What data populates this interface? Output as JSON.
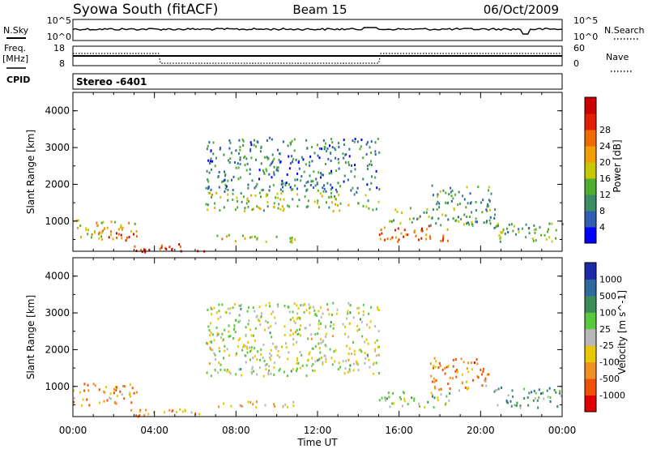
{
  "header": {
    "title": "Syowa South (fitACF)",
    "beam": "Beam 15",
    "date": "06/Oct/2009"
  },
  "noise_panel": {
    "left_label": "N.Sky",
    "right_label": "N.Search",
    "left_ticks": [
      "10^5",
      "10^0"
    ],
    "right_ticks": [
      "10^5",
      "10^0"
    ]
  },
  "freq_panel": {
    "label_line1": "Freq.",
    "label_line2": "[MHz]",
    "right_label": "Nave",
    "left_ticks": [
      "18",
      "8"
    ],
    "right_ticks": [
      "60",
      "0"
    ]
  },
  "cpid": {
    "label": "CPID",
    "value": "Stereo -6401"
  },
  "colors": {
    "power": [
      "#0000ff",
      "#2e5fb0",
      "#3c8c64",
      "#4fae2e",
      "#c8c800",
      "#f0a000",
      "#f06a00",
      "#e02000",
      "#cc0000"
    ],
    "velocity": [
      "#1a2aa8",
      "#2e6aa0",
      "#3c8c5a",
      "#58c83c",
      "#b8b8b8",
      "#e8c800",
      "#f09020",
      "#f05000",
      "#e00000"
    ]
  },
  "chart_data": [
    {
      "type": "heatmap",
      "name": "power",
      "ylabel": "Slant Range [km]",
      "ylim": [
        180,
        4500
      ],
      "yticks": [
        "1000",
        "2000",
        "3000",
        "4000"
      ],
      "xlim": [
        0,
        24
      ],
      "colorbar": {
        "label": "Power [dB]",
        "ticks": [
          "4",
          "8",
          "12",
          "16",
          "20",
          "24",
          "28"
        ],
        "range": [
          0,
          30
        ]
      },
      "regions": [
        {
          "t0": 0.0,
          "t1": 3.2,
          "r0": 500,
          "r1": 1100,
          "level": 0.55
        },
        {
          "t0": 1.5,
          "t1": 3.0,
          "r0": 500,
          "r1": 700,
          "level": 0.85
        },
        {
          "t0": 2.8,
          "t1": 5.5,
          "r0": 200,
          "r1": 420,
          "level": 0.85
        },
        {
          "t0": 3.0,
          "t1": 6.5,
          "r0": 180,
          "r1": 260,
          "level": 0.95
        },
        {
          "t0": 6.5,
          "t1": 15.0,
          "r0": 1300,
          "r1": 1800,
          "level": 0.45
        },
        {
          "t0": 6.5,
          "t1": 15.0,
          "r0": 1800,
          "r1": 3300,
          "level": 0.25
        },
        {
          "t0": 7.0,
          "t1": 11.0,
          "r0": 450,
          "r1": 650,
          "level": 0.55
        },
        {
          "t0": 15.0,
          "t1": 18.5,
          "r0": 450,
          "r1": 900,
          "level": 0.75
        },
        {
          "t0": 15.5,
          "t1": 21.0,
          "r0": 900,
          "r1": 1400,
          "level": 0.35
        },
        {
          "t0": 17.5,
          "t1": 20.5,
          "r0": 1400,
          "r1": 2000,
          "level": 0.3
        },
        {
          "t0": 20.5,
          "t1": 24.0,
          "r0": 450,
          "r1": 1000,
          "level": 0.35
        }
      ]
    },
    {
      "type": "heatmap",
      "name": "velocity",
      "ylabel": "Slant Range [km]",
      "xlabel": "Time UT",
      "ylim": [
        180,
        4500
      ],
      "yticks": [
        "1000",
        "2000",
        "3000",
        "4000"
      ],
      "xlim": [
        0,
        24
      ],
      "xticks": [
        "00:00",
        "04:00",
        "08:00",
        "12:00",
        "16:00",
        "20:00",
        "00:00"
      ],
      "colorbar": {
        "label": "Velocity [m s^-1]",
        "ticks": [
          "1000",
          "500",
          "100",
          "25",
          "-25",
          "-100",
          "-500",
          "-1000"
        ]
      },
      "regions": [
        {
          "t0": 0.0,
          "t1": 3.2,
          "r0": 500,
          "r1": 1100,
          "level": 0.7
        },
        {
          "t0": 2.8,
          "t1": 6.5,
          "r0": 180,
          "r1": 420,
          "level": 0.65
        },
        {
          "t0": 6.5,
          "t1": 15.0,
          "r0": 1300,
          "r1": 1800,
          "level": 0.5
        },
        {
          "t0": 6.5,
          "t1": 15.0,
          "r0": 1800,
          "r1": 3300,
          "level": 0.5
        },
        {
          "t0": 7.0,
          "t1": 11.0,
          "r0": 450,
          "r1": 650,
          "level": 0.62
        },
        {
          "t0": 15.0,
          "t1": 18.5,
          "r0": 450,
          "r1": 900,
          "level": 0.45
        },
        {
          "t0": 17.5,
          "t1": 20.5,
          "r0": 900,
          "r1": 1800,
          "level": 0.72
        },
        {
          "t0": 20.5,
          "t1": 24.0,
          "r0": 450,
          "r1": 1000,
          "level": 0.35
        }
      ]
    }
  ]
}
